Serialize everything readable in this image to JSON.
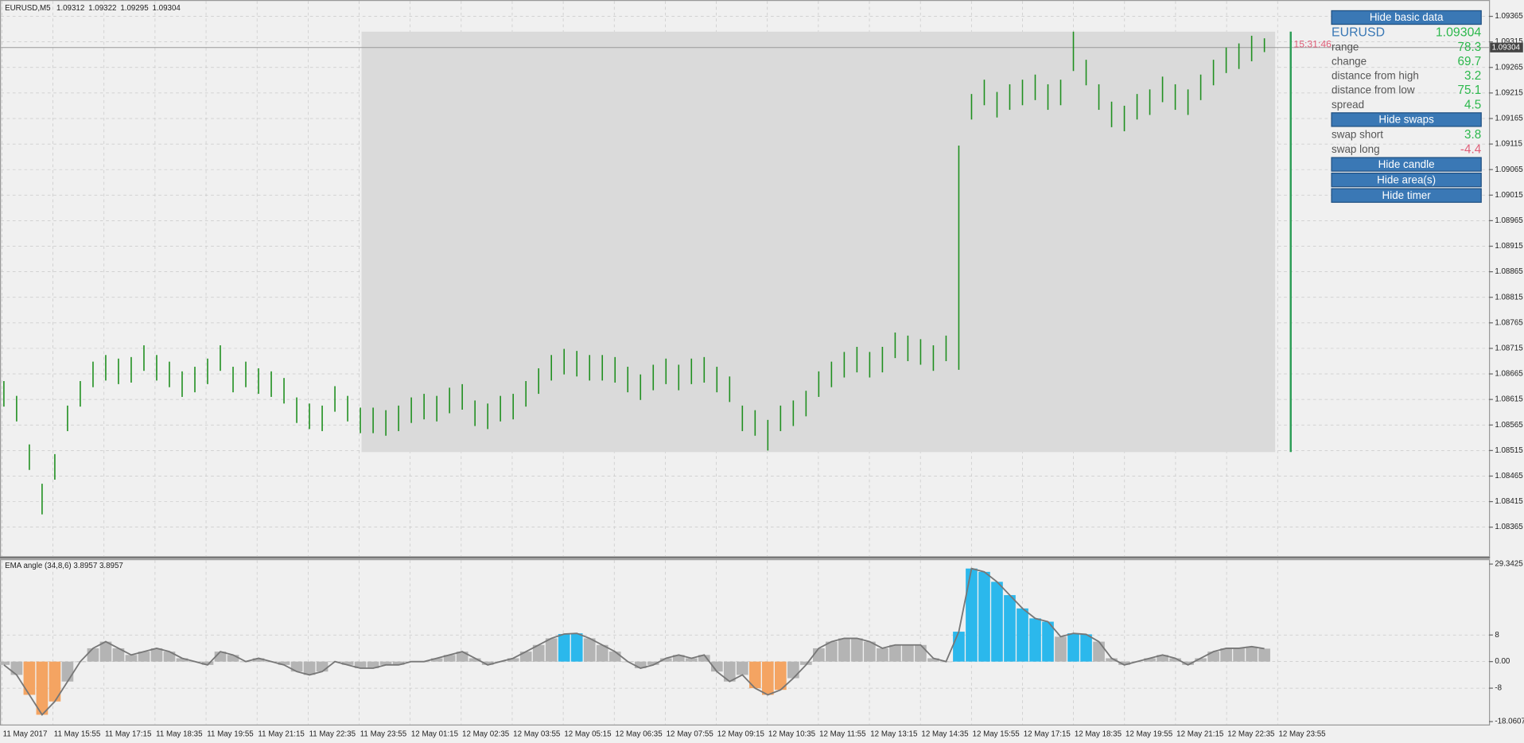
{
  "chart_data": [
    {
      "type": "ohlc",
      "title": "EURUSD,M5",
      "last_bar": [
        1.09312,
        1.09322,
        1.09295,
        1.09304
      ],
      "color": "#1f8f1f",
      "time_labels": [
        "11 May 2017",
        "11 May 15:55",
        "11 May 17:15",
        "11 May 18:35",
        "11 May 19:55",
        "11 May 21:15",
        "11 May 22:35",
        "11 May 23:55",
        "12 May 01:15",
        "12 May 02:35",
        "12 May 03:55",
        "12 May 05:15",
        "12 May 06:35",
        "12 May 07:55",
        "12 May 09:15",
        "12 May 10:35",
        "12 May 11:55",
        "12 May 13:15",
        "12 May 14:35",
        "12 May 15:55",
        "12 May 17:15",
        "12 May 18:35",
        "12 May 19:55",
        "12 May 21:15",
        "12 May 22:35",
        "12 May 23:55"
      ],
      "high": [
        1.08651,
        1.08622,
        1.08527,
        1.0845,
        1.08508,
        1.08603,
        1.08651,
        1.08689,
        1.08702,
        1.08695,
        1.08698,
        1.08721,
        1.08702,
        1.08689,
        1.0867,
        1.08679,
        1.08695,
        1.08721,
        1.08679,
        1.08689,
        1.08676,
        1.0867,
        1.08657,
        1.08619,
        1.08607,
        1.08603,
        1.08641,
        1.08622,
        1.08599,
        1.08599,
        1.08594,
        1.08603,
        1.08619,
        1.08626,
        1.08622,
        1.08638,
        1.08645,
        1.08613,
        1.08607,
        1.08622,
        1.08626,
        1.08651,
        1.08676,
        1.08702,
        1.08714,
        1.0871,
        1.08702,
        1.08702,
        1.08698,
        1.08679,
        1.08664,
        1.08683,
        1.08695,
        1.08683,
        1.08695,
        1.08698,
        1.08679,
        1.0866,
        1.08603,
        1.08594,
        1.08575,
        1.08603,
        1.08613,
        1.08632,
        1.0867,
        1.08689,
        1.08708,
        1.08718,
        1.08708,
        1.08718,
        1.08746,
        1.0874,
        1.08733,
        1.08721,
        1.0874,
        1.09112,
        1.09213,
        1.09241,
        1.09217,
        1.09232,
        1.09241,
        1.09251,
        1.09232,
        1.09241,
        1.09335,
        1.0928,
        1.09232,
        1.09198,
        1.0919,
        1.09213,
        1.09222,
        1.09247,
        1.09232,
        1.09222,
        1.09251,
        1.0928,
        1.09304,
        1.09312,
        1.09327,
        1.09322
      ],
      "low": [
        1.08601,
        1.08572,
        1.08477,
        1.0839,
        1.08458,
        1.08553,
        1.08601,
        1.08639,
        1.08652,
        1.08645,
        1.08648,
        1.08671,
        1.08652,
        1.08639,
        1.0862,
        1.08629,
        1.08645,
        1.08671,
        1.08629,
        1.08639,
        1.08626,
        1.0862,
        1.08607,
        1.08569,
        1.08557,
        1.08553,
        1.08591,
        1.08572,
        1.08549,
        1.08549,
        1.08544,
        1.08553,
        1.08569,
        1.08576,
        1.08572,
        1.08588,
        1.08595,
        1.08563,
        1.08557,
        1.08572,
        1.08576,
        1.08601,
        1.08626,
        1.08652,
        1.08664,
        1.0866,
        1.08652,
        1.08652,
        1.08648,
        1.08629,
        1.08614,
        1.08633,
        1.08645,
        1.08633,
        1.08645,
        1.08648,
        1.08629,
        1.0861,
        1.08553,
        1.08544,
        1.08515,
        1.08553,
        1.08563,
        1.08582,
        1.0862,
        1.08639,
        1.08658,
        1.08668,
        1.08658,
        1.08668,
        1.08696,
        1.0869,
        1.08683,
        1.08671,
        1.0869,
        1.08673,
        1.09163,
        1.09191,
        1.09167,
        1.09182,
        1.09191,
        1.09201,
        1.09182,
        1.09191,
        1.09258,
        1.0923,
        1.09182,
        1.09148,
        1.0914,
        1.09163,
        1.09172,
        1.09197,
        1.09182,
        1.09172,
        1.09201,
        1.0923,
        1.09254,
        1.09262,
        1.09277,
        1.09295
      ],
      "bid": 1.09304,
      "timer": "15:31:46",
      "area": {
        "high": 1.09335,
        "low": 1.08512,
        "color": "#dadada"
      },
      "candle_color": "#2a9d55",
      "ylim": [
        1.08308,
        1.09397
      ],
      "yticks": [
        1.09365,
        1.09315,
        1.09265,
        1.09215,
        1.09165,
        1.09115,
        1.09065,
        1.09015,
        1.08965,
        1.08915,
        1.08865,
        1.08815,
        1.08765,
        1.08715,
        1.08665,
        1.08615,
        1.08565,
        1.08515,
        1.08465,
        1.08415,
        1.08365
      ],
      "grid": true
    },
    {
      "type": "bar",
      "title": "EMA angle (34,8,6) 3.8957 3.8957",
      "values": [
        -1,
        -4,
        -10,
        -16,
        -12,
        -6,
        0,
        4,
        6,
        4,
        2,
        3,
        4,
        3,
        1,
        0,
        -1,
        3,
        2,
        0,
        1,
        0,
        -1,
        -3,
        -4,
        -3,
        0,
        -1,
        -2,
        -2,
        -1,
        -1,
        0,
        0,
        1,
        2,
        3,
        1,
        -1,
        0,
        1,
        3,
        5,
        7,
        8.3,
        8.5,
        7,
        5,
        3,
        0,
        -2,
        -1,
        1,
        2,
        1,
        2,
        -3,
        -6,
        -4,
        -8,
        -10,
        -8.5,
        -5,
        -1,
        4,
        6,
        7,
        7,
        6,
        4,
        5,
        5,
        5,
        1,
        0,
        9,
        28,
        27,
        24,
        20,
        16,
        13,
        12,
        7.5,
        8.5,
        8.2,
        6,
        1,
        -1,
        0,
        1,
        2,
        1,
        -1,
        1,
        3,
        4,
        4,
        4.5,
        3.9
      ],
      "colors": {
        "up": "#2bb8ec",
        "down": "#f4a462",
        "flat": "#b4b4b4",
        "line": "#777777"
      },
      "ylim": [
        -19.23,
        30.81
      ],
      "yticks": [
        29.3425,
        8,
        {
          "value": 0,
          "label": "0.00"
        },
        -8,
        -18.0607
      ],
      "grid": true
    }
  ],
  "panel": {
    "buttons": [
      "Hide basic data",
      "Hide swaps",
      "Hide candle",
      "Hide area(s)",
      "Hide timer"
    ],
    "symbol": {
      "label": "EURUSD",
      "value": 1.09304
    },
    "basic": [
      {
        "label": "range",
        "value": 78.3
      },
      {
        "label": "change",
        "value": 69.7
      },
      {
        "label": "distance from high",
        "value": 3.2
      },
      {
        "label": "distance from low",
        "value": 75.1
      },
      {
        "label": "spread",
        "value": 4.5
      }
    ],
    "swaps": [
      {
        "label": "swap short",
        "value": 3.8
      },
      {
        "label": "swap long",
        "value": -4.4
      }
    ],
    "positive_color": "#2db84d",
    "negative_color": "#e0607a"
  }
}
